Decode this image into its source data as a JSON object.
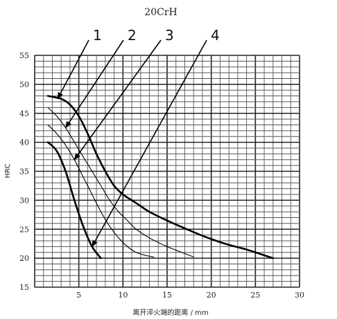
{
  "chart_data": {
    "type": "line",
    "title": "20CrH",
    "xlabel": "离开淬火端的距离 / mm",
    "ylabel": "HRC",
    "xlim": [
      0,
      30
    ],
    "ylim": [
      15,
      55
    ],
    "xticks": [
      "5",
      "10",
      "15",
      "20",
      "25",
      "30"
    ],
    "yticks": [
      "15",
      "20",
      "25",
      "30",
      "35",
      "40",
      "45",
      "50",
      "55"
    ],
    "grid": true,
    "series": [
      {
        "name": "1",
        "line_weight": "heavy",
        "x": [
          1.5,
          3,
          4,
          5,
          6,
          7,
          8,
          9,
          10,
          11,
          12,
          13,
          15,
          18,
          20,
          22,
          24,
          26,
          27
        ],
        "y": [
          48,
          47.5,
          46.5,
          44.5,
          41.5,
          38,
          35,
          32.5,
          31,
          30,
          29,
          28,
          26.5,
          24.5,
          23.3,
          22.3,
          21.5,
          20.5,
          20
        ]
      },
      {
        "name": "2",
        "line_weight": "thin",
        "x": [
          1.5,
          2.5,
          3.5,
          4.5,
          5.5,
          6.5,
          7.5,
          8.5,
          9.5,
          10.5,
          11.5,
          13,
          15,
          17,
          18
        ],
        "y": [
          46,
          44.5,
          42.5,
          40,
          37.5,
          35,
          32.5,
          30,
          28,
          26.5,
          25,
          23.5,
          22,
          20.8,
          20.2
        ]
      },
      {
        "name": "3",
        "line_weight": "thin",
        "x": [
          1.5,
          2.5,
          3.5,
          4.5,
          5.5,
          6.5,
          7.5,
          8.5,
          9.5,
          10.5,
          11.5,
          12.5,
          13.5
        ],
        "y": [
          43,
          41.5,
          39.5,
          37,
          34,
          31,
          28,
          25.5,
          23.5,
          22,
          21,
          20.5,
          20.2
        ]
      },
      {
        "name": "4",
        "line_weight": "heavy",
        "x": [
          1.5,
          2.5,
          3.5,
          4.5,
          5.5,
          6.5,
          7.5
        ],
        "y": [
          40,
          38.5,
          35,
          30,
          25.5,
          22,
          20
        ]
      }
    ],
    "callouts": [
      "1",
      "2",
      "3",
      "4"
    ]
  }
}
